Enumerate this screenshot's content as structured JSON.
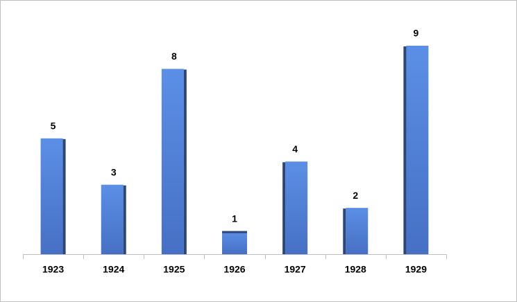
{
  "chart_data": {
    "type": "bar",
    "categories": [
      "1923",
      "1924",
      "1925",
      "1926",
      "1927",
      "1928",
      "1929"
    ],
    "values": [
      5,
      3,
      8,
      1,
      4,
      2,
      9
    ],
    "color": "#4a78d0"
  }
}
